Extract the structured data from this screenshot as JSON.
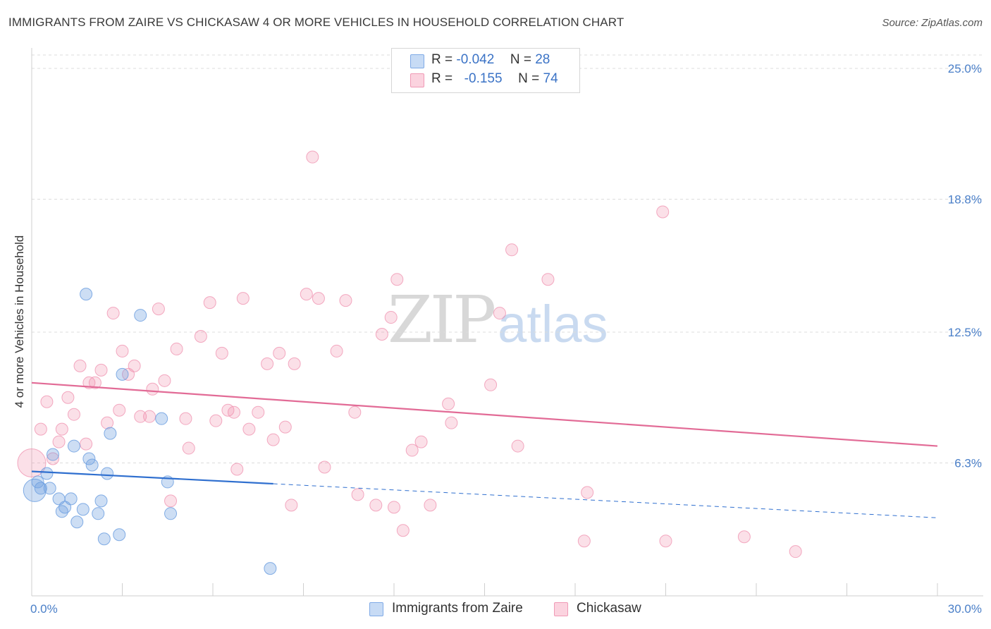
{
  "title": "IMMIGRANTS FROM ZAIRE VS CHICKASAW 4 OR MORE VEHICLES IN HOUSEHOLD CORRELATION CHART",
  "source": "Source: ZipAtlas.com",
  "watermark": {
    "zip": "ZIP",
    "atlas": "atlas"
  },
  "legend": {
    "rows": [
      {
        "r_label": "R =",
        "r_value": "-0.042",
        "n_label": "N =",
        "n_value": "28",
        "color": "#aecbf0"
      },
      {
        "r_label": "R =",
        "r_value": "-0.155",
        "n_label": "N =",
        "n_value": "74",
        "color": "#f7b8cb"
      }
    ]
  },
  "bottom_legend": [
    {
      "label": "Immigrants from Zaire",
      "color": "#aecbf0"
    },
    {
      "label": "Chickasaw",
      "color": "#f7b8cb"
    }
  ],
  "chart_data": {
    "type": "scatter",
    "ylabel": "4 or more Vehicles in Household",
    "xlabel": "",
    "xlim": [
      0,
      30
    ],
    "ylim": [
      0,
      25
    ],
    "x_tick_labels": [
      "0.0%",
      "30.0%"
    ],
    "y_ticks": [
      6.3,
      12.5,
      18.8,
      25.0
    ],
    "y_tick_labels": [
      "6.3%",
      "12.5%",
      "18.8%",
      "25.0%"
    ],
    "grid": "horizontal dashed",
    "legend_position": "top-center",
    "colors": {
      "zaire": "#6fa0e0",
      "chickasaw": "#ef8fad",
      "zaire_line": "#2f6fcf",
      "chickasaw_line": "#e26b96"
    },
    "series": [
      {
        "name": "Immigrants from Zaire",
        "points": [
          [
            0.1,
            5.0,
            18
          ],
          [
            0.2,
            5.4,
            10
          ],
          [
            0.3,
            5.1,
            10
          ],
          [
            0.5,
            5.8,
            10
          ],
          [
            0.6,
            5.1,
            10
          ],
          [
            0.7,
            6.7,
            10
          ],
          [
            0.9,
            4.6,
            10
          ],
          [
            1.0,
            4.0,
            10
          ],
          [
            1.1,
            4.2,
            10
          ],
          [
            1.3,
            4.6,
            10
          ],
          [
            1.4,
            7.1,
            10
          ],
          [
            1.5,
            3.5,
            10
          ],
          [
            1.7,
            4.1,
            10
          ],
          [
            1.8,
            14.3,
            10
          ],
          [
            1.9,
            6.5,
            10
          ],
          [
            2.0,
            6.2,
            10
          ],
          [
            2.2,
            3.9,
            10
          ],
          [
            2.3,
            4.5,
            10
          ],
          [
            2.4,
            2.7,
            10
          ],
          [
            2.5,
            5.8,
            10
          ],
          [
            2.6,
            7.7,
            10
          ],
          [
            2.9,
            2.9,
            10
          ],
          [
            3.0,
            10.5,
            10
          ],
          [
            3.6,
            13.3,
            10
          ],
          [
            4.3,
            8.4,
            10
          ],
          [
            4.5,
            5.4,
            10
          ],
          [
            4.6,
            3.9,
            10
          ],
          [
            7.9,
            1.3,
            10
          ]
        ],
        "trend": {
          "x0": 0,
          "y0": 5.9,
          "x_solid_end": 8.0,
          "x1": 30,
          "y1": 3.7
        }
      },
      {
        "name": "Chickasaw",
        "points": [
          [
            0.0,
            6.3,
            24
          ],
          [
            0.3,
            7.9,
            10
          ],
          [
            0.5,
            9.2,
            10
          ],
          [
            0.7,
            6.5,
            10
          ],
          [
            0.9,
            7.3,
            10
          ],
          [
            1.0,
            7.9,
            10
          ],
          [
            1.2,
            9.4,
            10
          ],
          [
            1.4,
            8.6,
            10
          ],
          [
            1.6,
            10.9,
            10
          ],
          [
            1.8,
            7.2,
            10
          ],
          [
            1.9,
            10.1,
            10
          ],
          [
            2.1,
            10.1,
            10
          ],
          [
            2.3,
            10.7,
            10
          ],
          [
            2.5,
            8.2,
            10
          ],
          [
            2.7,
            13.4,
            10
          ],
          [
            2.9,
            8.8,
            10
          ],
          [
            3.0,
            11.6,
            10
          ],
          [
            3.2,
            10.5,
            10
          ],
          [
            3.4,
            10.9,
            10
          ],
          [
            3.6,
            8.5,
            10
          ],
          [
            3.9,
            8.5,
            10
          ],
          [
            4.0,
            9.8,
            10
          ],
          [
            4.2,
            13.6,
            10
          ],
          [
            4.4,
            10.2,
            10
          ],
          [
            4.6,
            4.5,
            10
          ],
          [
            4.8,
            11.7,
            10
          ],
          [
            5.1,
            8.4,
            10
          ],
          [
            5.2,
            7.0,
            10
          ],
          [
            5.6,
            12.3,
            10
          ],
          [
            5.9,
            13.9,
            10
          ],
          [
            6.1,
            8.3,
            10
          ],
          [
            6.3,
            11.5,
            10
          ],
          [
            6.5,
            8.8,
            10
          ],
          [
            6.7,
            8.7,
            10
          ],
          [
            6.8,
            6.0,
            10
          ],
          [
            7.0,
            14.1,
            10
          ],
          [
            7.2,
            7.9,
            10
          ],
          [
            7.5,
            8.7,
            10
          ],
          [
            7.8,
            11.0,
            10
          ],
          [
            8.0,
            7.4,
            10
          ],
          [
            8.2,
            11.5,
            10
          ],
          [
            8.4,
            8.0,
            10
          ],
          [
            8.6,
            4.3,
            10
          ],
          [
            8.7,
            11.0,
            10
          ],
          [
            9.1,
            14.3,
            10
          ],
          [
            9.3,
            20.8,
            10
          ],
          [
            9.5,
            14.1,
            10
          ],
          [
            9.7,
            6.1,
            10
          ],
          [
            10.1,
            11.6,
            10
          ],
          [
            10.4,
            14.0,
            10
          ],
          [
            10.7,
            8.7,
            10
          ],
          [
            10.8,
            4.8,
            10
          ],
          [
            11.4,
            4.3,
            10
          ],
          [
            11.6,
            12.4,
            10
          ],
          [
            11.9,
            13.2,
            10
          ],
          [
            12.0,
            4.2,
            10
          ],
          [
            12.1,
            15.0,
            10
          ],
          [
            12.3,
            3.1,
            10
          ],
          [
            12.6,
            6.9,
            10
          ],
          [
            12.9,
            7.3,
            10
          ],
          [
            13.8,
            9.1,
            10
          ],
          [
            13.9,
            8.2,
            10
          ],
          [
            13.2,
            4.3,
            10
          ],
          [
            15.2,
            10.0,
            10
          ],
          [
            15.5,
            13.4,
            10
          ],
          [
            15.9,
            16.4,
            10
          ],
          [
            16.1,
            7.1,
            10
          ],
          [
            17.1,
            15.0,
            10
          ],
          [
            18.3,
            2.6,
            10
          ],
          [
            18.4,
            4.9,
            10
          ],
          [
            20.9,
            18.2,
            10
          ],
          [
            21.0,
            2.6,
            10
          ],
          [
            23.6,
            2.8,
            10
          ],
          [
            25.3,
            2.1,
            10
          ]
        ],
        "trend": {
          "x0": 0,
          "y0": 10.1,
          "x1": 30,
          "y1": 7.1
        }
      }
    ]
  }
}
